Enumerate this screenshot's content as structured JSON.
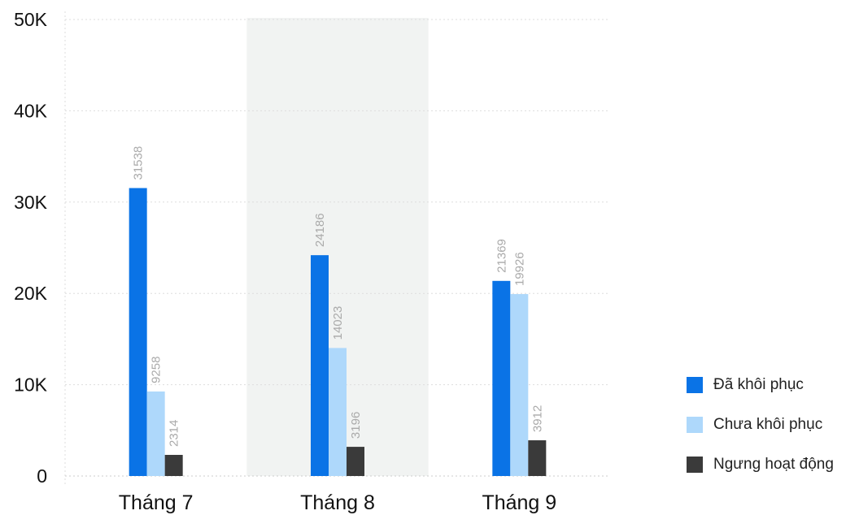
{
  "chart_data": {
    "type": "bar",
    "title": "",
    "xlabel": "",
    "ylabel": "",
    "categories": [
      "Tháng 7",
      "Tháng 8",
      "Tháng 9"
    ],
    "highlighted_category": "Tháng 8",
    "ylim": [
      0,
      50000
    ],
    "yticks": [
      0,
      10000,
      20000,
      30000,
      40000,
      50000
    ],
    "ytick_labels": [
      "0",
      "10K",
      "20K",
      "30K",
      "40K",
      "50K"
    ],
    "grid": true,
    "legend_position": "right",
    "series": [
      {
        "name": "Đã khôi phục",
        "color": "#0a73e6",
        "values": [
          31538,
          24186,
          21369
        ]
      },
      {
        "name": "Chưa khôi phục",
        "color": "#aed8fb",
        "values": [
          9258,
          14023,
          19926
        ]
      },
      {
        "name": "Ngưng hoạt động",
        "color": "#3a3a3a",
        "values": [
          2314,
          3196,
          3912
        ]
      }
    ],
    "highlight_color": "#f1f3f2",
    "value_label_color": "#aaaaaa"
  }
}
